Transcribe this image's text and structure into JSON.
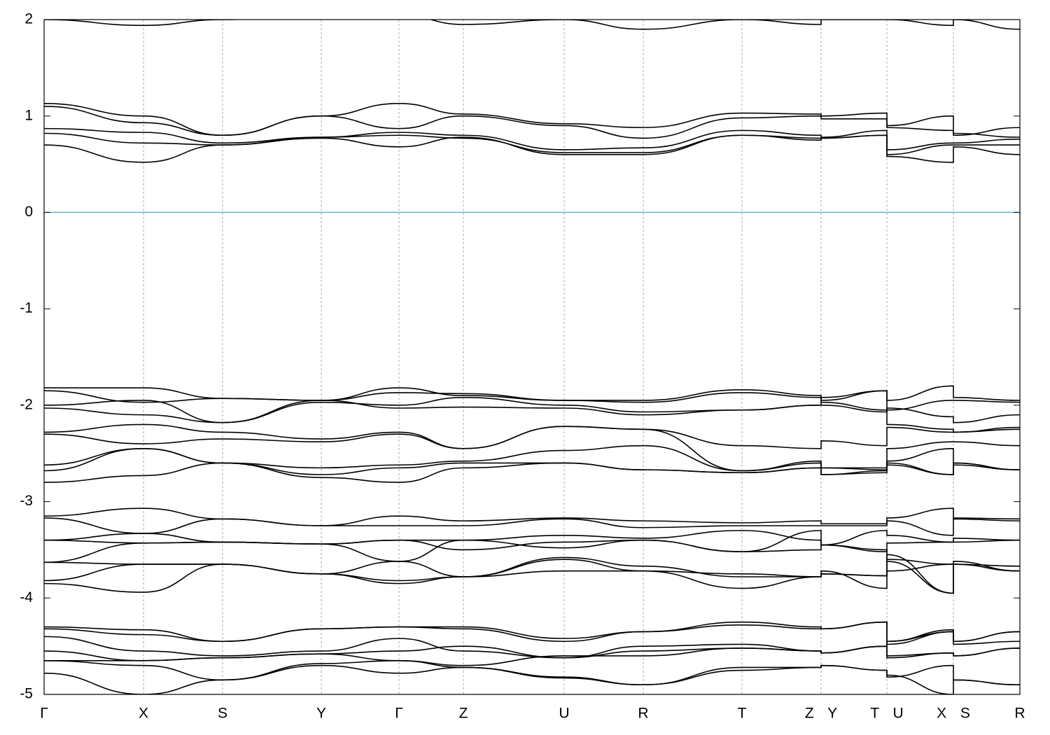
{
  "chart_data": {
    "type": "line",
    "x": [
      0,
      142,
      255,
      396,
      507,
      599,
      743,
      856,
      997,
      1110,
      1110,
      1204,
      1204,
      1299,
      1299,
      1394
    ],
    "xlim": [
      0,
      1394
    ],
    "xticks": [
      {
        "value": 0,
        "label": "Γ"
      },
      {
        "value": 142,
        "label": "X"
      },
      {
        "value": 255,
        "label": "S"
      },
      {
        "value": 396,
        "label": "Y"
      },
      {
        "value": 507,
        "label": "Γ"
      },
      {
        "value": 599,
        "label": "Z"
      },
      {
        "value": 743,
        "label": "U"
      },
      {
        "value": 856,
        "label": "R"
      },
      {
        "value": 997,
        "label": "T"
      },
      {
        "value": 1110,
        "label": "Z Y"
      },
      {
        "value": 1204,
        "label": "T U"
      },
      {
        "value": 1299,
        "label": "X S"
      },
      {
        "value": 1394,
        "label": "R"
      }
    ],
    "xgrid": true,
    "ylim": [
      -5,
      2
    ],
    "yticks": [
      -5,
      -4,
      -3,
      -2,
      -1,
      0,
      1,
      2
    ],
    "fermi_level": 0,
    "fermi_color": "#5fb4c8",
    "series": [
      {
        "color": "#000000",
        "values": [
          2.0,
          1.94,
          2.0,
          2.05,
          2.05,
          1.95,
          2.0,
          1.9,
          2.0,
          1.95,
          2.0,
          2.0,
          2.0,
          1.94,
          2.0,
          1.9
        ]
      },
      {
        "color": "#000000",
        "values": [
          1.13,
          1.0,
          0.8,
          1.0,
          1.13,
          1.02,
          0.92,
          0.88,
          1.03,
          1.02,
          1.0,
          1.03,
          0.9,
          1.0,
          0.8,
          0.88
        ]
      },
      {
        "color": "#000000",
        "values": [
          1.1,
          0.93,
          0.8,
          1.0,
          0.87,
          1.0,
          0.9,
          0.77,
          0.98,
          1.0,
          0.97,
          0.97,
          0.88,
          0.85,
          0.82,
          0.78
        ]
      },
      {
        "color": "#000000",
        "values": [
          0.87,
          0.83,
          0.72,
          0.78,
          0.83,
          0.8,
          0.65,
          0.67,
          0.85,
          0.8,
          0.78,
          0.85,
          0.65,
          0.72,
          0.72,
          0.76
        ]
      },
      {
        "color": "#000000",
        "values": [
          0.82,
          0.72,
          0.7,
          0.78,
          0.8,
          0.77,
          0.62,
          0.62,
          0.8,
          0.77,
          0.77,
          0.8,
          0.6,
          0.7,
          0.7,
          0.7
        ]
      },
      {
        "color": "#000000",
        "values": [
          0.7,
          0.52,
          0.7,
          0.77,
          0.68,
          0.78,
          0.6,
          0.6,
          0.8,
          0.75,
          0.77,
          0.8,
          0.58,
          0.52,
          0.68,
          0.6
        ]
      },
      {
        "color": "#000000",
        "values": [
          -1.82,
          -1.82,
          -1.93,
          -1.95,
          -1.82,
          -1.9,
          -1.95,
          -1.95,
          -1.84,
          -1.9,
          -1.95,
          -1.85,
          -1.95,
          -1.8,
          -1.92,
          -1.95
        ]
      },
      {
        "color": "#000000",
        "values": [
          -1.85,
          -1.97,
          -1.93,
          -1.95,
          -1.87,
          -1.88,
          -1.95,
          -1.97,
          -1.87,
          -1.92,
          -1.97,
          -2.05,
          -2.05,
          -1.95,
          -1.95,
          -1.97
        ]
      },
      {
        "color": "#000000",
        "values": [
          -2.0,
          -1.95,
          -2.18,
          -1.97,
          -2.0,
          -1.92,
          -2.0,
          -2.07,
          -2.05,
          -2.0,
          -2.0,
          -2.07,
          -2.03,
          -2.12,
          -2.18,
          -2.1
        ]
      },
      {
        "color": "#000000",
        "values": [
          -2.03,
          -2.1,
          -2.18,
          -1.95,
          -2.03,
          -2.02,
          -2.03,
          -2.1,
          -2.05,
          -2.0,
          -1.92,
          -1.85,
          -2.2,
          -2.25,
          -2.28,
          -2.25
        ]
      },
      {
        "color": "#000000",
        "values": [
          -2.28,
          -2.2,
          -2.28,
          -2.35,
          -2.28,
          -2.45,
          -2.22,
          -2.25,
          -2.42,
          -2.45,
          -2.37,
          -2.42,
          -2.23,
          -2.28,
          -2.28,
          -2.23
        ]
      },
      {
        "color": "#000000",
        "values": [
          -2.3,
          -2.4,
          -2.35,
          -2.38,
          -2.3,
          -2.45,
          -2.22,
          -2.25,
          -2.68,
          -2.6,
          -2.65,
          -2.65,
          -2.45,
          -2.38,
          -2.38,
          -2.42
        ]
      },
      {
        "color": "#000000",
        "values": [
          -2.62,
          -2.45,
          -2.6,
          -2.65,
          -2.62,
          -2.58,
          -2.47,
          -2.42,
          -2.68,
          -2.58,
          -2.65,
          -2.67,
          -2.58,
          -2.45,
          -2.6,
          -2.67
        ]
      },
      {
        "color": "#000000",
        "values": [
          -2.68,
          -2.45,
          -2.6,
          -2.72,
          -2.65,
          -2.6,
          -2.6,
          -2.67,
          -2.7,
          -2.65,
          -2.72,
          -2.68,
          -2.6,
          -2.72,
          -2.6,
          -2.67
        ]
      },
      {
        "color": "#000000",
        "values": [
          -2.8,
          -2.73,
          -2.6,
          -2.75,
          -2.8,
          -2.65,
          -2.6,
          -2.67,
          -2.7,
          -2.65,
          -2.72,
          -2.7,
          -2.62,
          -2.72,
          -2.62,
          -2.67
        ]
      },
      {
        "color": "#000000",
        "values": [
          -3.15,
          -3.07,
          -3.18,
          -3.25,
          -3.15,
          -3.2,
          -3.17,
          -3.2,
          -3.22,
          -3.2,
          -3.23,
          -3.23,
          -3.17,
          -3.07,
          -3.17,
          -3.18
        ]
      },
      {
        "color": "#000000",
        "values": [
          -3.17,
          -3.33,
          -3.18,
          -3.25,
          -3.25,
          -3.25,
          -3.18,
          -3.27,
          -3.25,
          -3.25,
          -3.25,
          -3.25,
          -3.2,
          -3.35,
          -3.18,
          -3.2
        ]
      },
      {
        "color": "#000000",
        "values": [
          -3.4,
          -3.33,
          -3.42,
          -3.44,
          -3.4,
          -3.4,
          -3.35,
          -3.38,
          -3.3,
          -3.4,
          -3.45,
          -3.3,
          -3.35,
          -3.42,
          -3.38,
          -3.4
        ]
      },
      {
        "color": "#000000",
        "values": [
          -3.4,
          -3.43,
          -3.42,
          -3.44,
          -3.4,
          -3.5,
          -3.42,
          -3.4,
          -3.52,
          -3.5,
          -3.45,
          -3.52,
          -3.43,
          -3.42,
          -3.42,
          -3.4
        ]
      },
      {
        "color": "#000000",
        "values": [
          -3.63,
          -3.43,
          -3.42,
          -3.44,
          -3.62,
          -3.4,
          -3.48,
          -3.4,
          -3.52,
          -3.3,
          -3.45,
          -3.5,
          -3.6,
          -3.65,
          -3.65,
          -3.67
        ]
      },
      {
        "color": "#000000",
        "values": [
          -3.63,
          -3.65,
          -3.65,
          -3.75,
          -3.62,
          -3.78,
          -3.58,
          -3.67,
          -3.78,
          -3.78,
          -3.75,
          -3.77,
          -3.72,
          -3.65,
          -3.65,
          -3.72
        ]
      },
      {
        "color": "#000000",
        "values": [
          -3.82,
          -3.65,
          -3.65,
          -3.75,
          -3.82,
          -3.78,
          -3.6,
          -3.72,
          -3.75,
          -3.78,
          -3.75,
          -3.77,
          -3.62,
          -3.95,
          -3.65,
          -3.72
        ]
      },
      {
        "color": "#000000",
        "values": [
          -3.85,
          -3.94,
          -3.65,
          -3.75,
          -3.85,
          -3.78,
          -3.72,
          -3.72,
          -3.9,
          -3.78,
          -3.72,
          -3.9,
          -3.55,
          -3.95,
          -3.62,
          -3.72
        ]
      },
      {
        "color": "#000000",
        "values": [
          -4.3,
          -4.33,
          -4.45,
          -4.32,
          -4.3,
          -4.3,
          -4.42,
          -4.35,
          -4.25,
          -4.3,
          -4.32,
          -4.25,
          -4.45,
          -4.33,
          -4.45,
          -4.35
        ]
      },
      {
        "color": "#000000",
        "values": [
          -4.32,
          -4.38,
          -4.45,
          -4.32,
          -4.3,
          -4.32,
          -4.45,
          -4.35,
          -4.28,
          -4.32,
          -4.32,
          -4.25,
          -4.48,
          -4.35,
          -4.45,
          -4.35
        ]
      },
      {
        "color": "#000000",
        "values": [
          -4.4,
          -4.55,
          -4.6,
          -4.55,
          -4.42,
          -4.55,
          -4.62,
          -4.5,
          -4.48,
          -4.55,
          -4.57,
          -4.5,
          -4.45,
          -4.35,
          -4.48,
          -4.45
        ]
      },
      {
        "color": "#000000",
        "values": [
          -4.55,
          -4.65,
          -4.62,
          -4.58,
          -4.55,
          -4.5,
          -4.62,
          -4.55,
          -4.52,
          -4.55,
          -4.57,
          -4.5,
          -4.6,
          -4.57,
          -4.6,
          -4.52
        ]
      },
      {
        "color": "#000000",
        "values": [
          -4.65,
          -4.65,
          -4.62,
          -4.58,
          -4.65,
          -4.7,
          -4.6,
          -4.6,
          -4.52,
          -4.55,
          -4.57,
          -4.5,
          -4.62,
          -4.57,
          -4.6,
          -4.52
        ]
      },
      {
        "color": "#000000",
        "values": [
          -4.65,
          -4.7,
          -4.85,
          -4.68,
          -4.65,
          -4.72,
          -4.82,
          -4.9,
          -4.75,
          -4.72,
          -4.7,
          -4.75,
          -4.82,
          -4.7,
          -4.85,
          -4.9
        ]
      },
      {
        "color": "#000000",
        "values": [
          -4.78,
          -5.0,
          -4.85,
          -4.7,
          -4.78,
          -4.72,
          -4.83,
          -4.9,
          -4.72,
          -4.72,
          -4.7,
          -4.75,
          -4.8,
          -5.0,
          -4.85,
          -4.9
        ]
      }
    ]
  }
}
